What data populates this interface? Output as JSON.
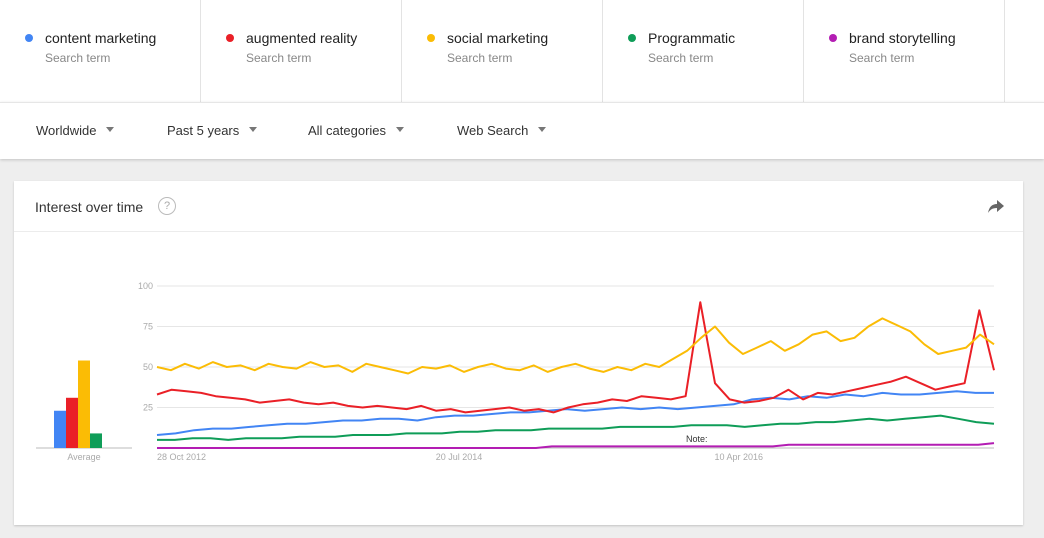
{
  "terms": [
    {
      "name": "content marketing",
      "sub": "Search term",
      "color": "#4285f4"
    },
    {
      "name": "augmented reality",
      "sub": "Search term",
      "color": "#ea2027"
    },
    {
      "name": "social marketing",
      "sub": "Search term",
      "color": "#fbbc05"
    },
    {
      "name": "Programmatic",
      "sub": "Search term",
      "color": "#0f9d58"
    },
    {
      "name": "brand storytelling",
      "sub": "Search term",
      "color": "#b31db3"
    }
  ],
  "filters": {
    "region": "Worldwide",
    "time": "Past 5 years",
    "category": "All categories",
    "search_type": "Web Search"
  },
  "card": {
    "title": "Interest over time",
    "help_icon": "?",
    "share_icon": "share-arrow-icon"
  },
  "chart_data": {
    "type": "line",
    "average_label": "Average",
    "note_label": "Note:",
    "y_ticks": [
      100,
      75,
      50,
      25
    ],
    "ylim": [
      0,
      100
    ],
    "x_tick_labels": [
      "28 Oct 2012",
      "20 Jul 2014",
      "10 Apr 2016"
    ],
    "averages": [
      {
        "name": "content marketing",
        "value": 23
      },
      {
        "name": "augmented reality",
        "value": 31
      },
      {
        "name": "social marketing",
        "value": 54
      },
      {
        "name": "Programmatic",
        "value": 9
      }
    ],
    "series": [
      {
        "name": "content marketing",
        "color": "#4285f4",
        "values": [
          8,
          9,
          11,
          12,
          12,
          13,
          14,
          15,
          15,
          16,
          17,
          17,
          18,
          18,
          17,
          19,
          20,
          20,
          21,
          22,
          22,
          23,
          24,
          23,
          24,
          25,
          24,
          25,
          24,
          25,
          26,
          27,
          30,
          31,
          30,
          32,
          31,
          33,
          32,
          34,
          33,
          33,
          34,
          35,
          34,
          34
        ]
      },
      {
        "name": "augmented reality",
        "color": "#ea2027",
        "values": [
          33,
          36,
          35,
          34,
          32,
          31,
          30,
          28,
          29,
          30,
          28,
          27,
          28,
          26,
          25,
          26,
          25,
          24,
          26,
          23,
          24,
          22,
          23,
          24,
          25,
          23,
          24,
          22,
          25,
          27,
          28,
          30,
          29,
          32,
          31,
          30,
          32,
          90,
          40,
          30,
          28,
          29,
          31,
          36,
          30,
          34,
          33,
          35,
          37,
          39,
          41,
          44,
          40,
          36,
          38,
          40,
          85,
          48
        ]
      },
      {
        "name": "social marketing",
        "color": "#fbbc05",
        "values": [
          50,
          48,
          52,
          49,
          53,
          50,
          51,
          48,
          52,
          50,
          49,
          53,
          50,
          51,
          47,
          52,
          50,
          48,
          46,
          50,
          49,
          51,
          47,
          50,
          52,
          49,
          48,
          51,
          47,
          50,
          52,
          49,
          47,
          50,
          48,
          52,
          50,
          55,
          60,
          68,
          75,
          65,
          58,
          62,
          66,
          60,
          64,
          70,
          72,
          66,
          68,
          75,
          80,
          76,
          72,
          64,
          58,
          60,
          62,
          70,
          64
        ]
      },
      {
        "name": "Programmatic",
        "color": "#0f9d58",
        "values": [
          5,
          5,
          6,
          6,
          5,
          6,
          6,
          6,
          7,
          7,
          7,
          8,
          8,
          8,
          9,
          9,
          9,
          10,
          10,
          11,
          11,
          11,
          12,
          12,
          12,
          12,
          13,
          13,
          13,
          13,
          14,
          14,
          14,
          13,
          14,
          15,
          15,
          16,
          16,
          17,
          18,
          17,
          18,
          19,
          20,
          18,
          16,
          15
        ]
      },
      {
        "name": "brand storytelling",
        "color": "#b31db3",
        "values": [
          0,
          0,
          0,
          0,
          0,
          0,
          0,
          0,
          0,
          0,
          0,
          0,
          0,
          0,
          0,
          0,
          0,
          0,
          0,
          0,
          0,
          0,
          0,
          0,
          0,
          1,
          1,
          1,
          1,
          1,
          1,
          1,
          1,
          1,
          1,
          1,
          1,
          1,
          1,
          1,
          2,
          2,
          2,
          2,
          2,
          2,
          2,
          2,
          2,
          2,
          2,
          2,
          2,
          3
        ]
      }
    ]
  }
}
